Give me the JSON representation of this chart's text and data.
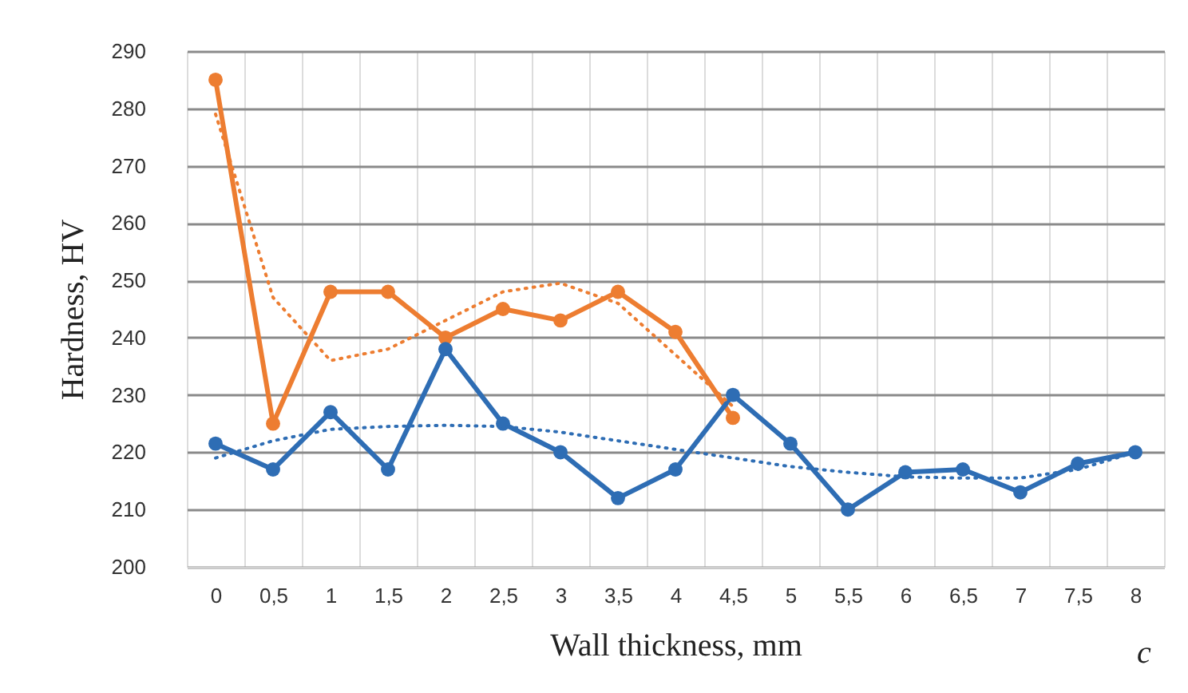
{
  "chart_data": {
    "type": "line",
    "xlabel": "Wall thickness, mm",
    "ylabel": "Hardness, HV",
    "categories": [
      "0",
      "0,5",
      "1",
      "1,5",
      "2",
      "2,5",
      "3",
      "3,5",
      "4",
      "4,5",
      "5",
      "5,5",
      "6",
      "6,5",
      "7",
      "7,5",
      "8"
    ],
    "series": [
      {
        "color": "#ed7d31",
        "marker": "circle",
        "line_style": "solid",
        "values": [
          285,
          225,
          248,
          248,
          240,
          245,
          243,
          248,
          241,
          226,
          null,
          null,
          null,
          null,
          null,
          null,
          null
        ]
      },
      {
        "color": "#2e6db4",
        "marker": "circle",
        "line_style": "solid",
        "values": [
          221.5,
          217,
          227,
          217,
          238,
          225,
          220,
          212,
          217,
          230,
          221.5,
          210,
          216.5,
          217,
          213,
          218,
          220
        ]
      },
      {
        "color": "#ed7d31",
        "marker": "none",
        "line_style": "dotted",
        "values": [
          279,
          247,
          236,
          238,
          243,
          248,
          249.5,
          246,
          237,
          228,
          null,
          null,
          null,
          null,
          null,
          null,
          null
        ]
      },
      {
        "color": "#2e6db4",
        "marker": "none",
        "line_style": "dotted",
        "values": [
          219,
          222,
          224,
          224.5,
          224.7,
          224.5,
          223.5,
          222,
          220.5,
          219,
          217.5,
          216.5,
          215.7,
          215.5,
          215.5,
          217,
          220
        ]
      }
    ],
    "ylim": [
      200,
      290
    ],
    "yticks": [
      200,
      210,
      220,
      230,
      240,
      250,
      260,
      270,
      280,
      290
    ],
    "grid": true,
    "annotations": [
      "c"
    ]
  }
}
